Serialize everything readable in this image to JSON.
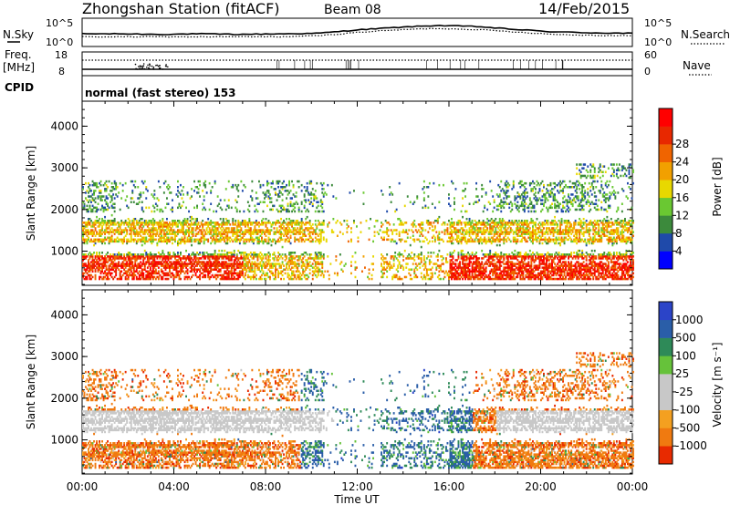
{
  "header": {
    "station": "Zhongshan Station (fitACF)",
    "beam": "Beam 08",
    "date": "14/Feb/2015"
  },
  "strips": {
    "nsky_label": "N.Sky",
    "nsearch_label": "N.Search",
    "noise_ticks": [
      "10^5",
      "10^0"
    ],
    "freq_label_top": "Freq.",
    "freq_label_unit": "[MHz]",
    "freq_ticks": [
      "18",
      "8"
    ],
    "nave_label": "Nave",
    "nave_ticks": [
      "60",
      "0"
    ],
    "cpid_label": "CPID",
    "cpid_text": "normal (fast stereo) 153"
  },
  "colors": {
    "power_scale": [
      "#0000ff",
      "#1f4aaa",
      "#3c8a3c",
      "#6ac832",
      "#e8d800",
      "#f2a000",
      "#f06400",
      "#e82800",
      "#ff0000"
    ],
    "velocity_scale": [
      "#2b44c8",
      "#2a5ea8",
      "#2e8a58",
      "#66c23a",
      "#c8c8c8",
      "#c8c8c8",
      "#f4a020",
      "#f07a10",
      "#e82a00",
      "#ff0000"
    ]
  },
  "chart_data": [
    {
      "type": "line",
      "name": "noise",
      "ylabel_left": "N.Sky",
      "ylabel_right": "N.Search",
      "x": [
        "00:00",
        "02:00",
        "04:00",
        "06:00",
        "08:00",
        "10:00",
        "11:00",
        "12:00",
        "14:00",
        "16:00",
        "17:00",
        "18:00",
        "20:00",
        "22:00",
        "00:00"
      ],
      "series": [
        {
          "name": "N.Sky",
          "values": [
            2.2,
            2.2,
            2.1,
            2.2,
            2.1,
            2.2,
            2.3,
            3.0,
            3.5,
            3.9,
            3.7,
            3.1,
            2.6,
            2.4,
            2.3
          ]
        },
        {
          "name": "N.Search",
          "values": [
            1.6,
            1.6,
            1.6,
            1.6,
            1.6,
            1.6,
            1.8,
            2.5,
            3.0,
            3.3,
            3.1,
            2.6,
            2.1,
            1.9,
            1.8
          ]
        }
      ],
      "ylim": [
        0,
        5
      ]
    },
    {
      "type": "line",
      "name": "frequency-nave",
      "ylabel_left": "Freq. [MHz]",
      "ylabel_right": "Nave",
      "frequency_mhz": 8,
      "nave": 40
    },
    {
      "type": "heatmap",
      "name": "power",
      "ylabel": "Slant Range [km]",
      "colorbar_label": "Power [dB]",
      "colorbar_ticks": [
        "4",
        "8",
        "12",
        "16",
        "20",
        "24",
        "28"
      ],
      "y_ticks": [
        "1000",
        "2000",
        "3000",
        "4000"
      ],
      "x_ticks": [
        "00:00",
        "04:00",
        "08:00",
        "12:00",
        "16:00",
        "20:00",
        "00:00"
      ],
      "xlim_hours": [
        0,
        24
      ],
      "ylim_km": [
        180,
        4600
      ],
      "value_range": [
        0,
        30
      ]
    },
    {
      "type": "heatmap",
      "name": "velocity",
      "ylabel": "Slant Range [km]",
      "xlabel": "Time UT",
      "colorbar_label": "Velocity [m s⁻¹]",
      "colorbar_ticks": [
        "1000",
        "500",
        "100",
        "25",
        "-25",
        "-100",
        "-500",
        "-1000"
      ],
      "y_ticks": [
        "1000",
        "2000",
        "3000",
        "4000"
      ],
      "x_ticks": [
        "00:00",
        "04:00",
        "08:00",
        "12:00",
        "16:00",
        "20:00",
        "00:00"
      ],
      "xlim_hours": [
        0,
        24
      ],
      "ylim_km": [
        180,
        4600
      ],
      "value_range": [
        -1000,
        1000
      ]
    }
  ]
}
